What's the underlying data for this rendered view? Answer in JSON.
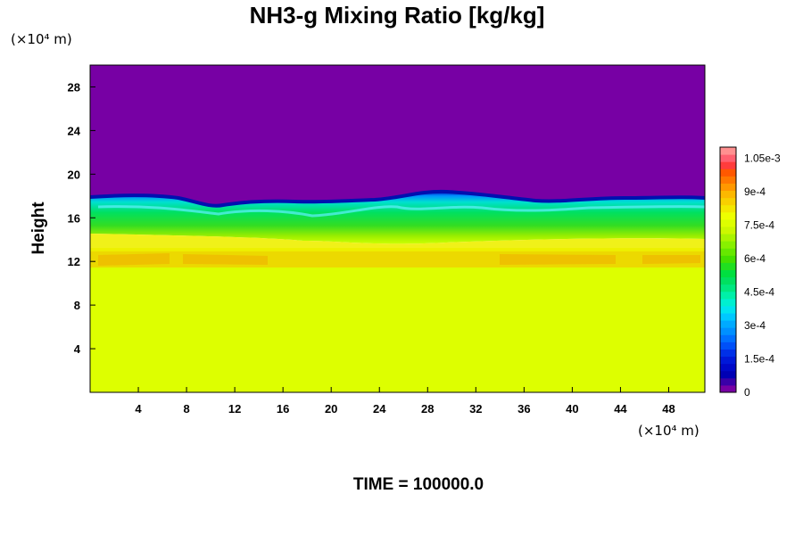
{
  "chart_data": {
    "type": "heatmap",
    "title": "NH3-g Mixing Ratio [kg/kg]",
    "ylabel": "Height",
    "x_unit": "(×10⁴ m)",
    "y_unit": "(×10⁴ m)",
    "x_ticks": [
      "4",
      "8",
      "12",
      "16",
      "20",
      "24",
      "28",
      "32",
      "36",
      "40",
      "44",
      "48"
    ],
    "y_ticks": [
      "4",
      "8",
      "12",
      "16",
      "20",
      "24",
      "28"
    ],
    "xlim": [
      0,
      51
    ],
    "ylim": [
      0,
      30
    ],
    "colorbar": {
      "ticks": [
        "1.05e-3",
        "9e-4",
        "7.5e-4",
        "6e-4",
        "4.5e-4",
        "3e-4",
        "1.5e-4",
        "0"
      ],
      "range": [
        0,
        0.0011
      ]
    },
    "colors": {
      "upper_layer": "#7700a4",
      "lower_layer": "#ddff00",
      "band": "#f0d000"
    },
    "field_summary": {
      "zero_above_height": 17.5,
      "uniform_value_below_height": 11.5,
      "uniform_value": 0.00076,
      "band_height_range": [
        11.5,
        12.7
      ],
      "band_value": 0.00083
    },
    "time_label": "TIME = 100000.0"
  }
}
